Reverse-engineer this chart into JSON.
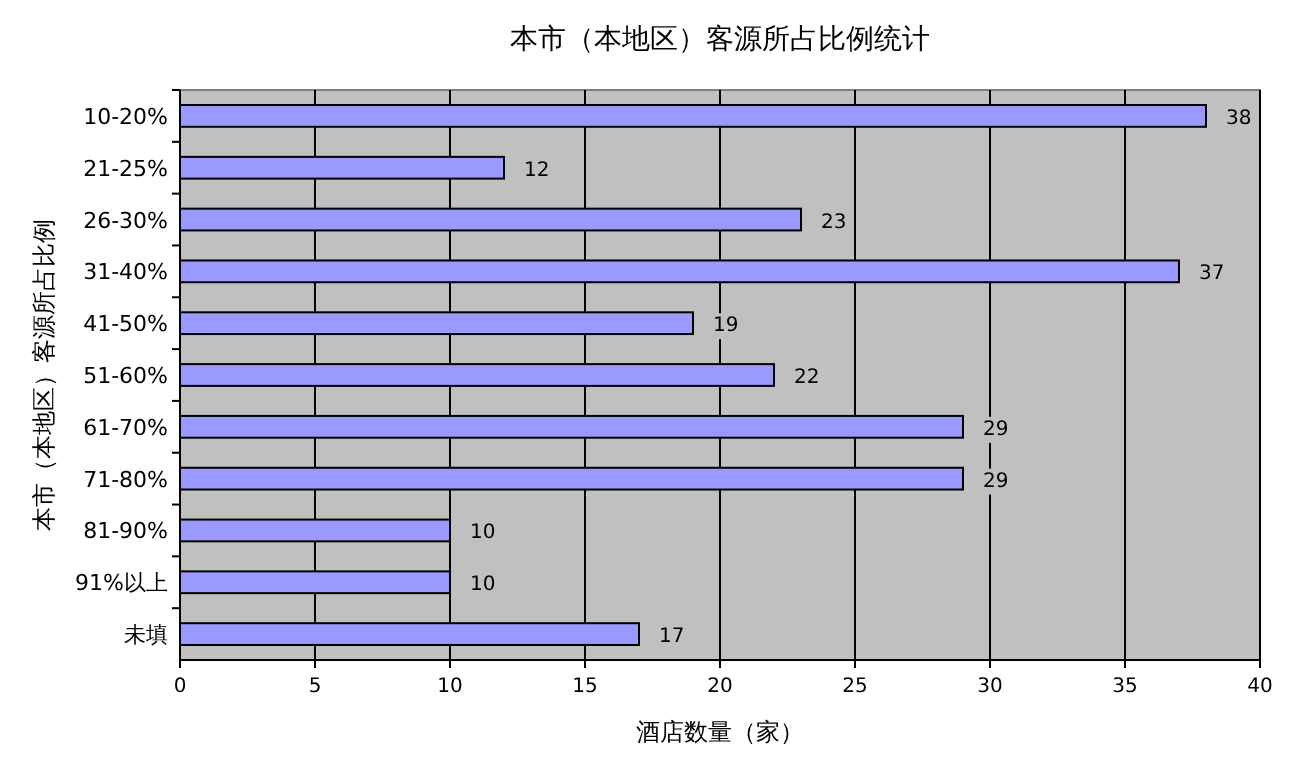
{
  "chart_data": {
    "type": "bar",
    "orientation": "horizontal",
    "title": "本市（本地区）客源所占比例统计",
    "xlabel": "酒店数量（家）",
    "ylabel": "本市（本地区）客源所占比例",
    "categories": [
      "10-20%",
      "21-25%",
      "26-30%",
      "31-40%",
      "41-50%",
      "51-60%",
      "61-70%",
      "71-80%",
      "81-90%",
      "91%以上",
      "未填"
    ],
    "values": [
      38,
      12,
      23,
      37,
      19,
      22,
      29,
      29,
      10,
      10,
      17
    ],
    "color": "#9999ff",
    "xlim": [
      0,
      40
    ],
    "xticks": [
      0,
      5,
      10,
      15,
      20,
      25,
      30,
      35,
      40
    ],
    "grid": "x",
    "data_labels": true
  }
}
